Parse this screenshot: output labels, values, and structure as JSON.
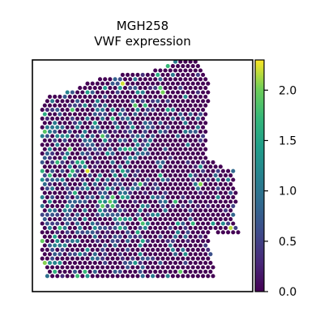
{
  "chart_data": {
    "type": "heatmap",
    "title": [
      "MGH258",
      "VWF expression"
    ],
    "colorbar": {
      "colormap": "viridis",
      "range": [
        0.0,
        2.3
      ],
      "ticks": [
        0.0,
        0.5,
        1.0,
        1.5,
        2.0
      ],
      "tick_labels": [
        "0.0",
        "0.5",
        "1.0",
        "1.5",
        "2.0"
      ]
    },
    "background": "#ffffff",
    "axes_frame": true,
    "axes_ticks": false,
    "grid": false,
    "spot_color_low": "#440154",
    "spot_color_high": "#fde725",
    "note": "spatial spot plot; per-spot values are not labeled in the image and are generated procedurally"
  }
}
